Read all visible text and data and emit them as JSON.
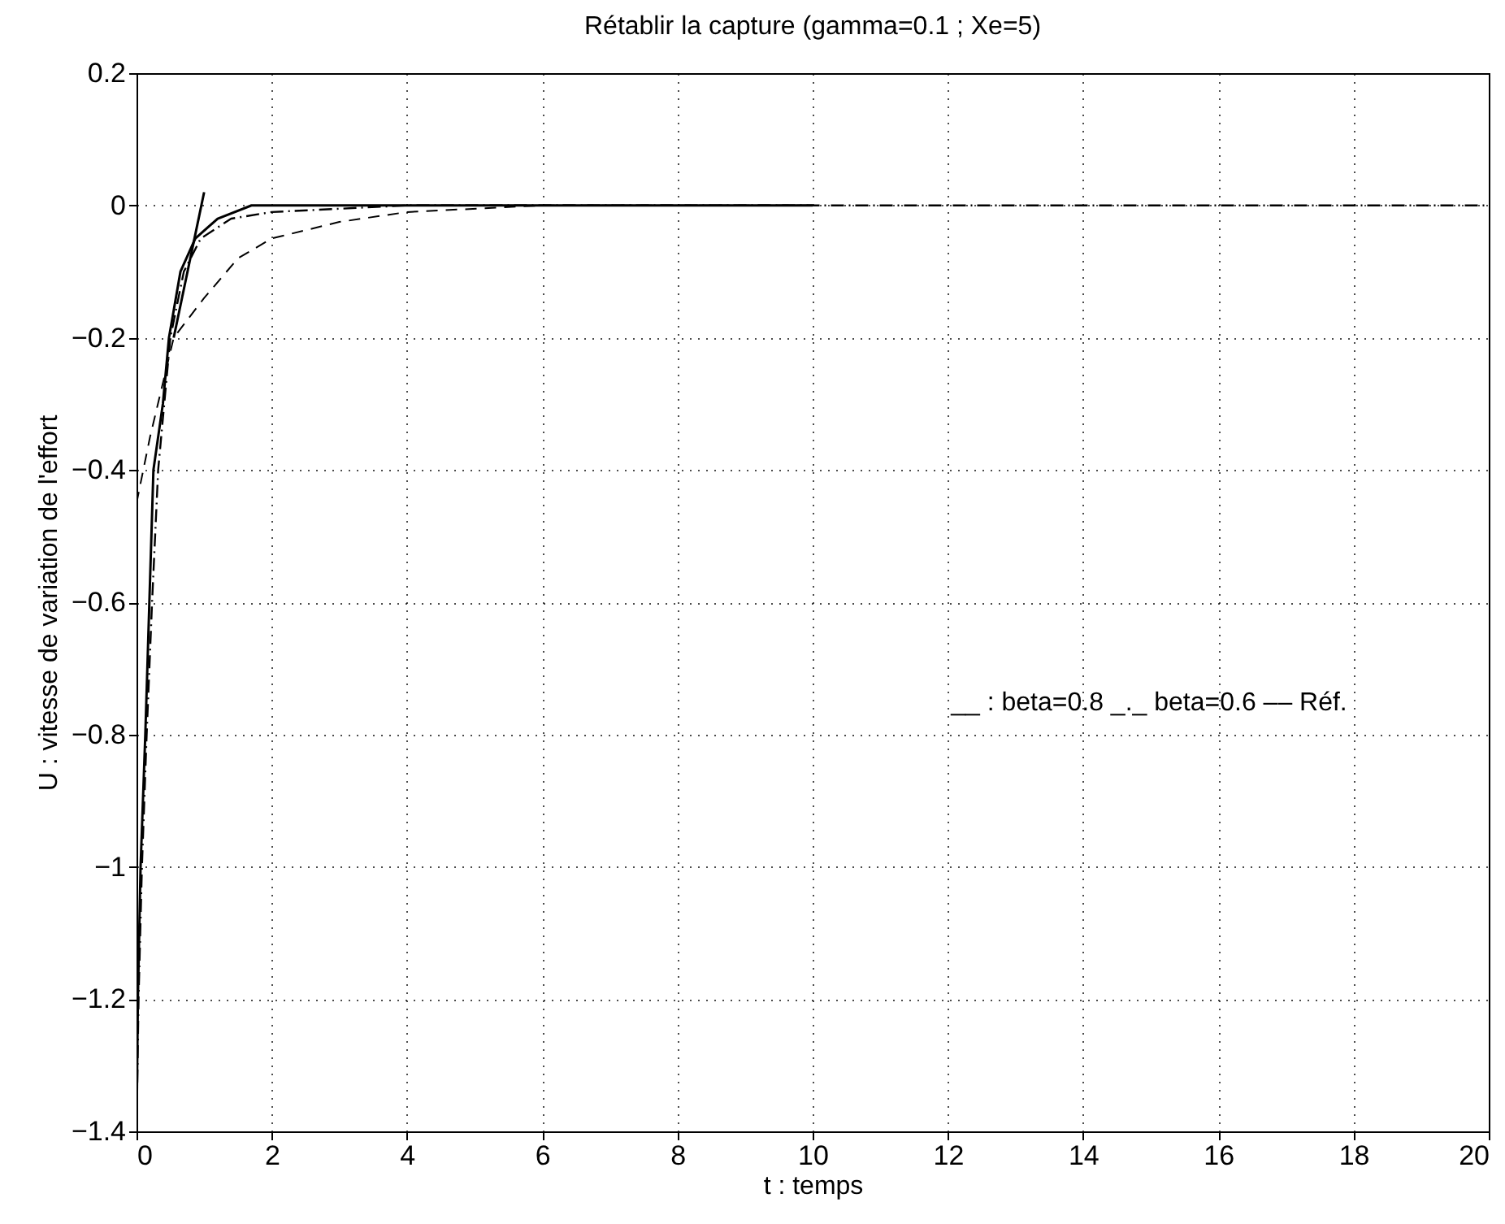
{
  "chart_data": {
    "type": "line",
    "title": "Rétablir la capture (gamma=0.1 ; Xe=5)",
    "xlabel": "t : temps",
    "ylabel": "U : vitesse de variation de l'effort",
    "annotations": [
      "__ : beta=0.8   _._ beta=0.6   –– Réf."
    ],
    "xlim": [
      0,
      20
    ],
    "xticks": [
      0,
      2,
      4,
      6,
      8,
      10,
      12,
      14,
      16,
      18,
      20
    ],
    "ylim": [
      -1.4,
      0.2
    ],
    "yticks": [
      -1.4,
      -1.2,
      -1,
      -0.8,
      -0.6,
      -0.4,
      -0.2,
      0,
      0.2
    ],
    "grid": true,
    "series": [
      {
        "color": "#000000",
        "line_style": "solid",
        "x": [
          0,
          0.02,
          0.06,
          0.13,
          0.19,
          0.25,
          0.39,
          0.48,
          0.65,
          0.87,
          1.2,
          1.7,
          3,
          5,
          10
        ],
        "values": [
          -1.4,
          -1.2,
          -1,
          -0.8,
          -0.6,
          -0.4,
          -0.3,
          -0.2,
          -0.1,
          -0.05,
          -0.02,
          0,
          0,
          0,
          0
        ]
      },
      {
        "color": "#000000",
        "line_style": "dashdot",
        "x": [
          0,
          0.03,
          0.08,
          0.15,
          0.23,
          0.32,
          0.5,
          0.7,
          0.95,
          1.4,
          2,
          4,
          10,
          20
        ],
        "values": [
          -1.4,
          -1.2,
          -1,
          -0.8,
          -0.6,
          -0.4,
          -0.2,
          -0.1,
          -0.05,
          -0.02,
          -0.01,
          0,
          0,
          0
        ]
      },
      {
        "color": "#000000",
        "line_style": "dashed",
        "x": [
          0,
          0.2,
          0.55,
          1,
          1.5,
          2,
          3,
          4,
          6,
          10
        ],
        "values": [
          -0.45,
          -0.35,
          -0.2,
          -0.14,
          -0.08,
          -0.05,
          -0.025,
          -0.01,
          0,
          0
        ]
      },
      {
        "color": "#000000",
        "line_style": "solid",
        "x": [
          0.55,
          1
        ],
        "values": [
          -0.2,
          0.02
        ]
      }
    ]
  }
}
